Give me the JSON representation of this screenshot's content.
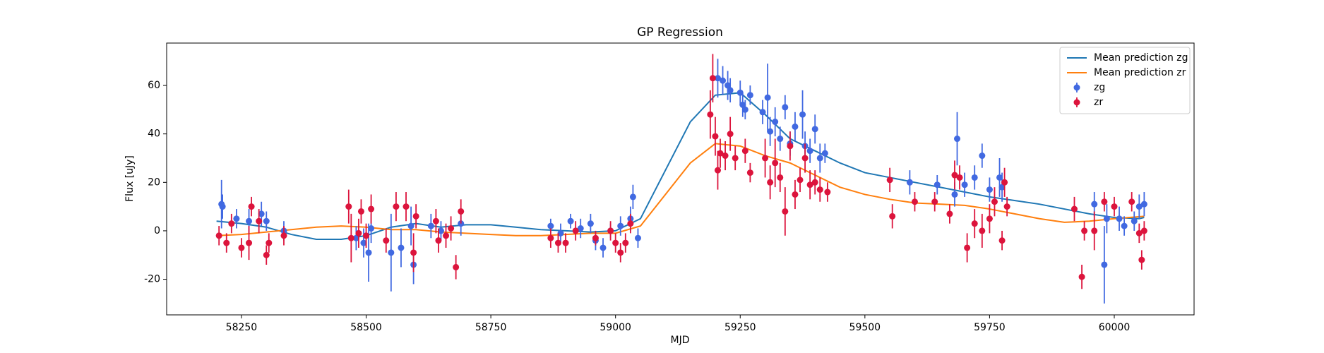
{
  "chart_data": {
    "type": "scatter",
    "title": "GP Regression",
    "xlabel": "MJD",
    "ylabel": "Flux [uJy]",
    "xlim": [
      58100,
      60160
    ],
    "ylim": [
      -34.7,
      77.5
    ],
    "xticks": [
      58250,
      58500,
      58750,
      59000,
      59250,
      59500,
      59750,
      60000
    ],
    "yticks": [
      -20,
      0,
      20,
      40,
      60
    ],
    "legend": "upper right",
    "series": [
      {
        "name": "Mean prediction zg",
        "type": "line",
        "color": "#1f77b4",
        "x": [
          58200,
          58250,
          58300,
          58350,
          58400,
          58450,
          58500,
          58550,
          58600,
          58650,
          58700,
          58750,
          58800,
          58850,
          58900,
          58950,
          59000,
          59050,
          59100,
          59150,
          59200,
          59250,
          59300,
          59350,
          59400,
          59450,
          59500,
          59550,
          59600,
          59650,
          59700,
          59750,
          59800,
          59850,
          59900,
          59950,
          60000,
          60050,
          60060
        ],
        "values": [
          4,
          3,
          1.5,
          -1.5,
          -3.5,
          -3.5,
          -2,
          1.5,
          3,
          1.5,
          2.5,
          2.5,
          1.5,
          0.5,
          0,
          -0.5,
          0,
          5,
          25,
          45,
          56,
          57,
          48,
          38,
          33,
          28,
          24,
          22,
          20,
          18,
          16,
          14,
          12.5,
          11,
          9,
          7,
          5.5,
          5,
          5.5
        ]
      },
      {
        "name": "Mean prediction zr",
        "type": "line",
        "color": "#ff7f0e",
        "x": [
          58200,
          58250,
          58300,
          58350,
          58400,
          58450,
          58500,
          58550,
          58600,
          58650,
          58700,
          58750,
          58800,
          58850,
          58900,
          58950,
          59000,
          59050,
          59100,
          59150,
          59200,
          59250,
          59300,
          59350,
          59400,
          59450,
          59500,
          59550,
          59600,
          59650,
          59700,
          59750,
          59800,
          59850,
          59900,
          59950,
          60000,
          60060
        ],
        "values": [
          -2,
          -1.5,
          -0.5,
          0.5,
          1.5,
          2,
          1.5,
          0.5,
          0.5,
          -0.5,
          -1,
          -1.5,
          -2,
          -2,
          -1.5,
          -1,
          -1,
          2,
          15,
          28,
          36,
          35,
          31,
          28,
          23,
          18,
          15,
          13,
          11.5,
          11,
          10.5,
          9,
          7,
          5,
          3.5,
          4,
          5,
          6
        ]
      },
      {
        "name": "zg",
        "type": "errorbar",
        "color": "#4169e1",
        "x": [
          58210,
          58212,
          58240,
          58265,
          58290,
          58300,
          58335,
          58480,
          58495,
          58505,
          58510,
          58550,
          58570,
          58590,
          58595,
          58630,
          58650,
          58690,
          58870,
          58890,
          58910,
          58930,
          58950,
          58960,
          58975,
          58990,
          59010,
          59030,
          59035,
          59045,
          59205,
          59215,
          59225,
          59230,
          59250,
          59255,
          59260,
          59270,
          59295,
          59305,
          59310,
          59320,
          59330,
          59340,
          59350,
          59360,
          59375,
          59380,
          59390,
          59400,
          59410,
          59420,
          59590,
          59645,
          59680,
          59685,
          59700,
          59720,
          59735,
          59750,
          59770,
          59775,
          59960,
          59980,
          59985,
          60010,
          60020,
          60040,
          60050,
          60060
        ],
        "values": [
          11,
          10,
          5,
          4,
          7,
          4,
          0,
          -3,
          -5,
          -9,
          1,
          -9,
          -7,
          2,
          -14,
          2,
          0,
          3,
          2,
          -1,
          4,
          1,
          3,
          -4,
          -7,
          0,
          2,
          5,
          14,
          -3,
          63,
          62,
          60,
          58,
          57,
          52,
          50,
          56,
          49,
          55,
          41,
          45,
          38,
          51,
          36,
          43,
          48,
          35,
          33,
          42,
          30,
          32,
          20,
          19,
          15,
          38,
          19,
          22,
          31,
          17,
          22,
          18,
          11,
          -14,
          5,
          5,
          2,
          4,
          10,
          11
        ],
        "errors": [
          10,
          5,
          4,
          5,
          5,
          4,
          4,
          5,
          6,
          12,
          6,
          16,
          8,
          8,
          8,
          5,
          4,
          5,
          3,
          4,
          3,
          4,
          4,
          4,
          4,
          3,
          4,
          5,
          5,
          4,
          8,
          6,
          6,
          5,
          5,
          5,
          4,
          4,
          5,
          14,
          6,
          6,
          5,
          5,
          5,
          6,
          10,
          6,
          5,
          6,
          6,
          4,
          5,
          4,
          5,
          11,
          5,
          5,
          5,
          5,
          8,
          6,
          5,
          16,
          6,
          5,
          4,
          4,
          5,
          5
        ]
      },
      {
        "name": "zr",
        "type": "errorbar",
        "color": "#dc143c",
        "x": [
          58205,
          58220,
          58230,
          58250,
          58265,
          58270,
          58285,
          58300,
          58305,
          58335,
          58465,
          58470,
          58485,
          58490,
          58500,
          58510,
          58540,
          58560,
          58580,
          58595,
          58600,
          58640,
          58645,
          58660,
          58670,
          58680,
          58690,
          58870,
          58885,
          58900,
          58920,
          58960,
          58990,
          59000,
          59010,
          59020,
          59030,
          59190,
          59195,
          59200,
          59205,
          59210,
          59220,
          59230,
          59240,
          59260,
          59270,
          59300,
          59310,
          59320,
          59330,
          59340,
          59350,
          59360,
          59370,
          59380,
          59390,
          59400,
          59410,
          59425,
          59550,
          59555,
          59600,
          59640,
          59670,
          59680,
          59690,
          59705,
          59720,
          59735,
          59750,
          59760,
          59775,
          59780,
          59785,
          59920,
          59935,
          59940,
          59960,
          59980,
          60000,
          60035,
          60050,
          60055,
          60060
        ],
        "values": [
          -2,
          -5,
          3,
          -7,
          -5,
          10,
          4,
          -10,
          -5,
          -2,
          10,
          -3,
          -1,
          8,
          -2,
          9,
          -4,
          10,
          10,
          -9,
          6,
          4,
          -4,
          -2,
          1,
          -15,
          8,
          -3,
          -5,
          -5,
          0,
          -3,
          0,
          -5,
          -9,
          -5,
          3,
          48,
          63,
          39,
          25,
          32,
          31,
          40,
          30,
          33,
          24,
          30,
          20,
          28,
          22,
          8,
          35,
          15,
          21,
          30,
          19,
          20,
          17,
          16,
          21,
          6,
          12,
          12,
          7,
          23,
          22,
          -7,
          3,
          0,
          5,
          12,
          -4,
          20,
          10,
          9,
          -19,
          0,
          0,
          12,
          10,
          12,
          -1,
          -12,
          0
        ],
        "errors": [
          4,
          4,
          4,
          4,
          7,
          4,
          5,
          4,
          4,
          4,
          7,
          10,
          6,
          5,
          5,
          6,
          5,
          6,
          6,
          8,
          5,
          5,
          5,
          5,
          5,
          5,
          5,
          4,
          4,
          4,
          4,
          3,
          4,
          4,
          4,
          4,
          4,
          10,
          10,
          8,
          8,
          6,
          6,
          7,
          5,
          5,
          4,
          8,
          7,
          10,
          6,
          10,
          6,
          6,
          5,
          6,
          6,
          5,
          5,
          4,
          5,
          5,
          4,
          4,
          4,
          6,
          5,
          6,
          6,
          7,
          6,
          6,
          4,
          6,
          4,
          5,
          5,
          4,
          8,
          4,
          4,
          4,
          4,
          4,
          4
        ]
      }
    ]
  }
}
